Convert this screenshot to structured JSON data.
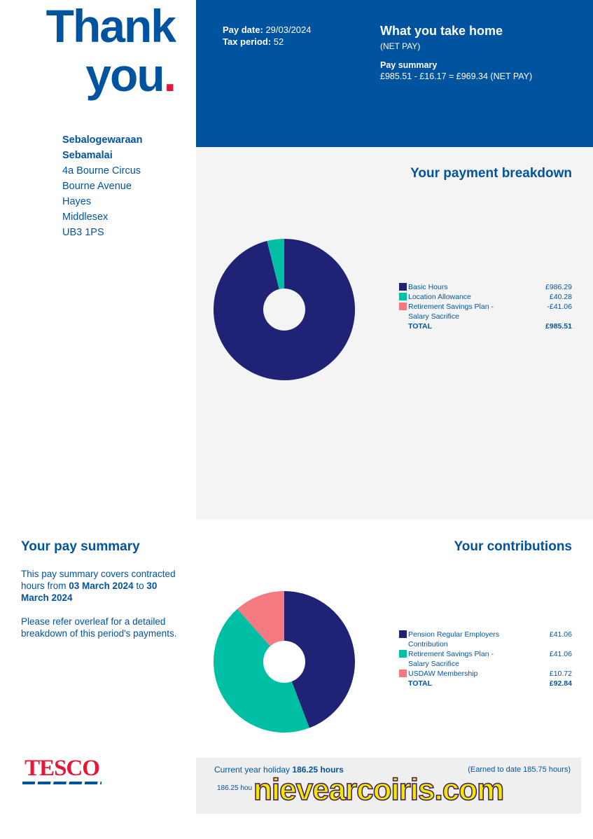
{
  "header": {
    "title_line1": "Thank",
    "title_line2": "you",
    "title_dot": ".",
    "pay_date_label": "Pay date:",
    "pay_date": "29/03/2024",
    "tax_period_label": "Tax period:",
    "tax_period": "52",
    "net_title": "What you take home",
    "net_subtitle": "(NET PAY)",
    "summary_label": "Pay summary",
    "summary_text": "£985.51 - £16.17 = £969.34 (NET PAY)"
  },
  "address": {
    "name_lines": [
      "Sebalogewaraan",
      "Sebamalai"
    ],
    "lines": [
      "4a Bourne Circus",
      "Bourne Avenue",
      "Hayes",
      "Middlesex",
      "UB3 1PS"
    ]
  },
  "payment_breakdown": {
    "title": "Your payment breakdown",
    "items": [
      {
        "name": "Basic Hours",
        "value": 986.29,
        "value_label": "£986.29",
        "color": "#1f2275"
      },
      {
        "name": "Location Allowance",
        "value": 40.28,
        "value_label": "£40.28",
        "color": "#00bfa5"
      },
      {
        "name": "Retirement Savings Plan - Salary Sacrifice",
        "value": -41.06,
        "value_label": "-£41.06",
        "color": "#f27a80"
      }
    ],
    "total_label": "TOTAL",
    "total": "£985.51"
  },
  "pay_summary": {
    "title": "Your pay summary",
    "paragraphs": [
      [
        {
          "text": "This pay summary covers contracted hours from "
        },
        {
          "text": "03 March 2024",
          "bold": true
        },
        {
          "text": " to "
        },
        {
          "text": "30 March 2024",
          "bold": true
        }
      ],
      [
        {
          "text": "Please refer overleaf for a detailed breakdown of this period's payments."
        }
      ]
    ]
  },
  "contributions": {
    "title": "Your contributions",
    "items": [
      {
        "name": "Pension Regular Employers Contribution",
        "value": 41.06,
        "value_label": "£41.06",
        "color": "#1f2275"
      },
      {
        "name": "Retirement Savings Plan - Salary Sacrifice",
        "value": 41.06,
        "value_label": "£41.06",
        "color": "#00bfa5"
      },
      {
        "name": "USDAW Membership",
        "value": 10.72,
        "value_label": "£10.72",
        "color": "#f27a80"
      }
    ],
    "total_label": "TOTAL",
    "total": "£92.84"
  },
  "logo": "TESCO",
  "holiday": {
    "label": "Current year holiday",
    "hours": "186.25 hours",
    "earned": "(Earned to date 185.75 hours)",
    "second_line": "186.25 hou"
  },
  "watermark": "nievearcoiris.com"
}
